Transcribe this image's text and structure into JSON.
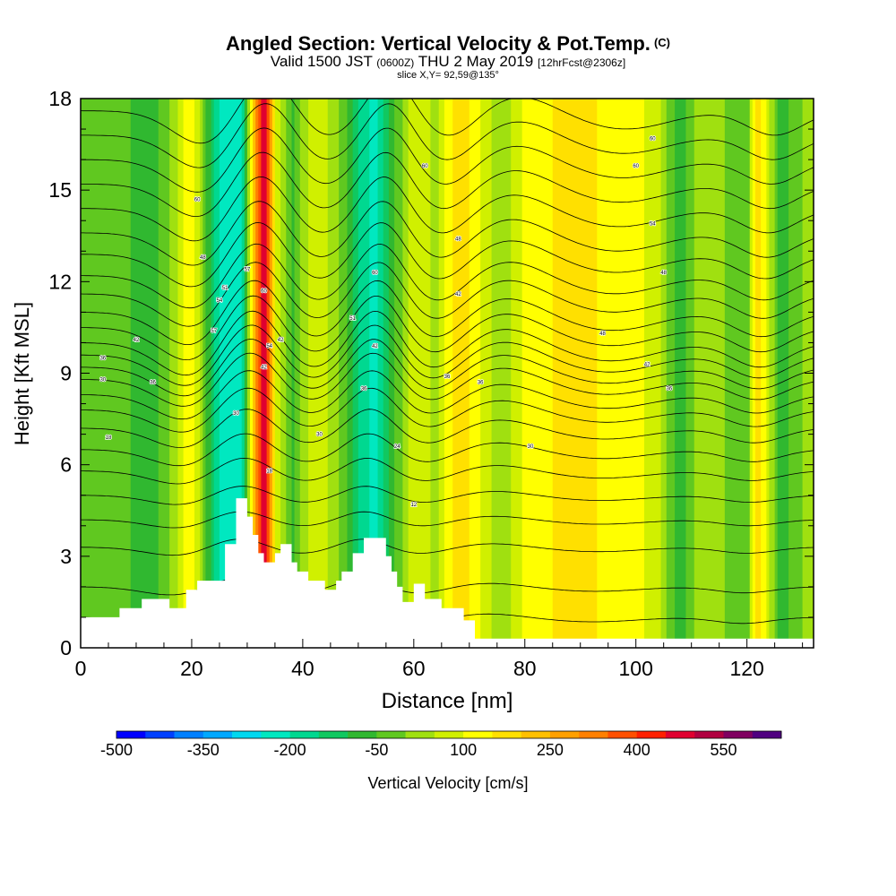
{
  "header": {
    "title": "Angled Section: Vertical Velocity & Pot.Temp.",
    "copyright": "(C)",
    "valid_prefix": "Valid 1500 JST",
    "valid_utc": "(0600Z)",
    "valid_date": "THU 2 May 2019",
    "forecast": "[12hrFcst@2306z]",
    "slice": "slice X,Y= 92,59@135°"
  },
  "chart_data": {
    "type": "heatmap",
    "xlabel": "Distance [nm]",
    "ylabel": "Height [Kft MSL]",
    "xlim": [
      0,
      132
    ],
    "ylim": [
      0,
      18
    ],
    "x_ticks": [
      0,
      20,
      40,
      60,
      80,
      100,
      120
    ],
    "y_ticks": [
      0,
      3,
      6,
      9,
      12,
      15,
      18
    ],
    "colorbar": {
      "label": "Vertical Velocity [cm/s]",
      "min": -500,
      "max": 650,
      "step": 50,
      "tick_values": [
        -500,
        -350,
        -200,
        -50,
        100,
        250,
        400,
        550
      ],
      "colors": [
        "#0000ff",
        "#0040ff",
        "#0080ff",
        "#00a8ff",
        "#00d8f0",
        "#00e8c0",
        "#00d890",
        "#10c860",
        "#30b830",
        "#60c820",
        "#a0e010",
        "#d0f000",
        "#ffff00",
        "#ffe000",
        "#ffc000",
        "#ffa000",
        "#ff8000",
        "#ff5000",
        "#ff2000",
        "#e00030",
        "#b00040",
        "#800060",
        "#500080"
      ]
    },
    "velocity_columns": [
      {
        "x": 3,
        "value": -30
      },
      {
        "x": 8,
        "value": -30
      },
      {
        "x": 12,
        "value": -100
      },
      {
        "x": 16,
        "value": 0
      },
      {
        "x": 20,
        "value": 150
      },
      {
        "x": 23,
        "value": -80
      },
      {
        "x": 26,
        "value": -250
      },
      {
        "x": 29,
        "value": -220
      },
      {
        "x": 31,
        "value": 200
      },
      {
        "x": 33,
        "value": 500
      },
      {
        "x": 35,
        "value": 100
      },
      {
        "x": 38,
        "value": -60
      },
      {
        "x": 42,
        "value": 80
      },
      {
        "x": 46,
        "value": 30
      },
      {
        "x": 50,
        "value": -150
      },
      {
        "x": 53,
        "value": -220
      },
      {
        "x": 56,
        "value": -80
      },
      {
        "x": 60,
        "value": 100
      },
      {
        "x": 64,
        "value": 30
      },
      {
        "x": 68,
        "value": 200
      },
      {
        "x": 72,
        "value": 100
      },
      {
        "x": 76,
        "value": 0
      },
      {
        "x": 80,
        "value": 120
      },
      {
        "x": 85,
        "value": 150
      },
      {
        "x": 90,
        "value": 180
      },
      {
        "x": 95,
        "value": 130
      },
      {
        "x": 100,
        "value": 120
      },
      {
        "x": 104,
        "value": 60
      },
      {
        "x": 108,
        "value": -80
      },
      {
        "x": 112,
        "value": 40
      },
      {
        "x": 116,
        "value": 0
      },
      {
        "x": 120,
        "value": -40
      },
      {
        "x": 122,
        "value": 200
      },
      {
        "x": 126,
        "value": -80
      },
      {
        "x": 130,
        "value": 0
      }
    ],
    "terrain": [
      [
        0,
        1.0
      ],
      [
        7,
        1.0
      ],
      [
        7,
        1.3
      ],
      [
        11,
        1.3
      ],
      [
        11,
        1.6
      ],
      [
        16,
        1.6
      ],
      [
        16,
        1.3
      ],
      [
        19,
        1.3
      ],
      [
        19,
        1.9
      ],
      [
        21,
        1.9
      ],
      [
        21,
        2.2
      ],
      [
        26,
        2.2
      ],
      [
        26,
        3.4
      ],
      [
        28,
        3.4
      ],
      [
        28,
        4.9
      ],
      [
        30,
        4.9
      ],
      [
        30,
        4.3
      ],
      [
        31,
        4.3
      ],
      [
        31,
        3.7
      ],
      [
        32,
        3.7
      ],
      [
        32,
        3.1
      ],
      [
        33,
        3.1
      ],
      [
        33,
        2.8
      ],
      [
        35,
        2.8
      ],
      [
        35,
        3.1
      ],
      [
        36,
        3.1
      ],
      [
        36,
        3.4
      ],
      [
        38,
        3.4
      ],
      [
        38,
        2.8
      ],
      [
        39,
        2.8
      ],
      [
        39,
        2.5
      ],
      [
        41,
        2.5
      ],
      [
        41,
        2.2
      ],
      [
        44,
        2.2
      ],
      [
        44,
        1.9
      ],
      [
        46,
        1.9
      ],
      [
        46,
        2.2
      ],
      [
        47,
        2.2
      ],
      [
        47,
        2.5
      ],
      [
        49,
        2.5
      ],
      [
        49,
        3.1
      ],
      [
        51,
        3.1
      ],
      [
        51,
        3.6
      ],
      [
        55,
        3.6
      ],
      [
        55,
        3.0
      ],
      [
        56,
        3.0
      ],
      [
        56,
        2.5
      ],
      [
        57,
        2.5
      ],
      [
        57,
        2.0
      ],
      [
        58,
        2.0
      ],
      [
        58,
        1.5
      ],
      [
        60,
        1.5
      ],
      [
        60,
        2.1
      ],
      [
        62,
        2.1
      ],
      [
        62,
        1.6
      ],
      [
        65,
        1.6
      ],
      [
        65,
        1.3
      ],
      [
        69,
        1.3
      ],
      [
        69,
        0.9
      ],
      [
        71,
        0.9
      ],
      [
        71,
        0.3
      ],
      [
        132,
        0.3
      ]
    ],
    "contours": {
      "base_heights": [
        1.0,
        2.0,
        3.3,
        4.2,
        5.0,
        5.8,
        6.5,
        7.2,
        7.8,
        8.3,
        8.8,
        9.2,
        9.6,
        10.0,
        10.5,
        11.0,
        11.6,
        12.2,
        12.9,
        13.6,
        14.4,
        15.2,
        16.0,
        16.8,
        17.6
      ],
      "labels": [
        {
          "x": 5,
          "y": 6.9,
          "text": "18"
        },
        {
          "x": 4,
          "y": 8.8,
          "text": "30"
        },
        {
          "x": 4,
          "y": 9.5,
          "text": "36"
        },
        {
          "x": 10,
          "y": 10.1,
          "text": "42"
        },
        {
          "x": 13,
          "y": 8.7,
          "text": "36"
        },
        {
          "x": 21,
          "y": 14.7,
          "text": "60"
        },
        {
          "x": 22,
          "y": 12.8,
          "text": "48"
        },
        {
          "x": 26,
          "y": 11.8,
          "text": "51"
        },
        {
          "x": 25,
          "y": 11.4,
          "text": "54"
        },
        {
          "x": 24,
          "y": 10.4,
          "text": "57"
        },
        {
          "x": 30,
          "y": 12.4,
          "text": "57"
        },
        {
          "x": 33,
          "y": 11.7,
          "text": "60"
        },
        {
          "x": 34,
          "y": 9.9,
          "text": "54"
        },
        {
          "x": 36,
          "y": 10.1,
          "text": "42"
        },
        {
          "x": 33,
          "y": 9.2,
          "text": "42"
        },
        {
          "x": 28,
          "y": 7.7,
          "text": "30"
        },
        {
          "x": 34,
          "y": 5.8,
          "text": "18"
        },
        {
          "x": 43,
          "y": 7.0,
          "text": "30"
        },
        {
          "x": 53,
          "y": 12.3,
          "text": "60"
        },
        {
          "x": 49,
          "y": 10.8,
          "text": "51"
        },
        {
          "x": 53,
          "y": 9.9,
          "text": "42"
        },
        {
          "x": 51,
          "y": 8.5,
          "text": "36"
        },
        {
          "x": 57,
          "y": 6.6,
          "text": "24"
        },
        {
          "x": 60,
          "y": 4.7,
          "text": "12"
        },
        {
          "x": 62,
          "y": 15.8,
          "text": "60"
        },
        {
          "x": 68,
          "y": 13.4,
          "text": "48"
        },
        {
          "x": 68,
          "y": 11.6,
          "text": "42"
        },
        {
          "x": 66,
          "y": 8.9,
          "text": "36"
        },
        {
          "x": 72,
          "y": 8.7,
          "text": "36"
        },
        {
          "x": 81,
          "y": 6.6,
          "text": "30"
        },
        {
          "x": 94,
          "y": 10.3,
          "text": "48"
        },
        {
          "x": 100,
          "y": 15.8,
          "text": "60"
        },
        {
          "x": 103,
          "y": 16.7,
          "text": "60"
        },
        {
          "x": 103,
          "y": 13.9,
          "text": "54"
        },
        {
          "x": 105,
          "y": 12.3,
          "text": "48"
        },
        {
          "x": 102,
          "y": 9.3,
          "text": "42"
        },
        {
          "x": 106,
          "y": 8.5,
          "text": "36"
        }
      ]
    }
  }
}
